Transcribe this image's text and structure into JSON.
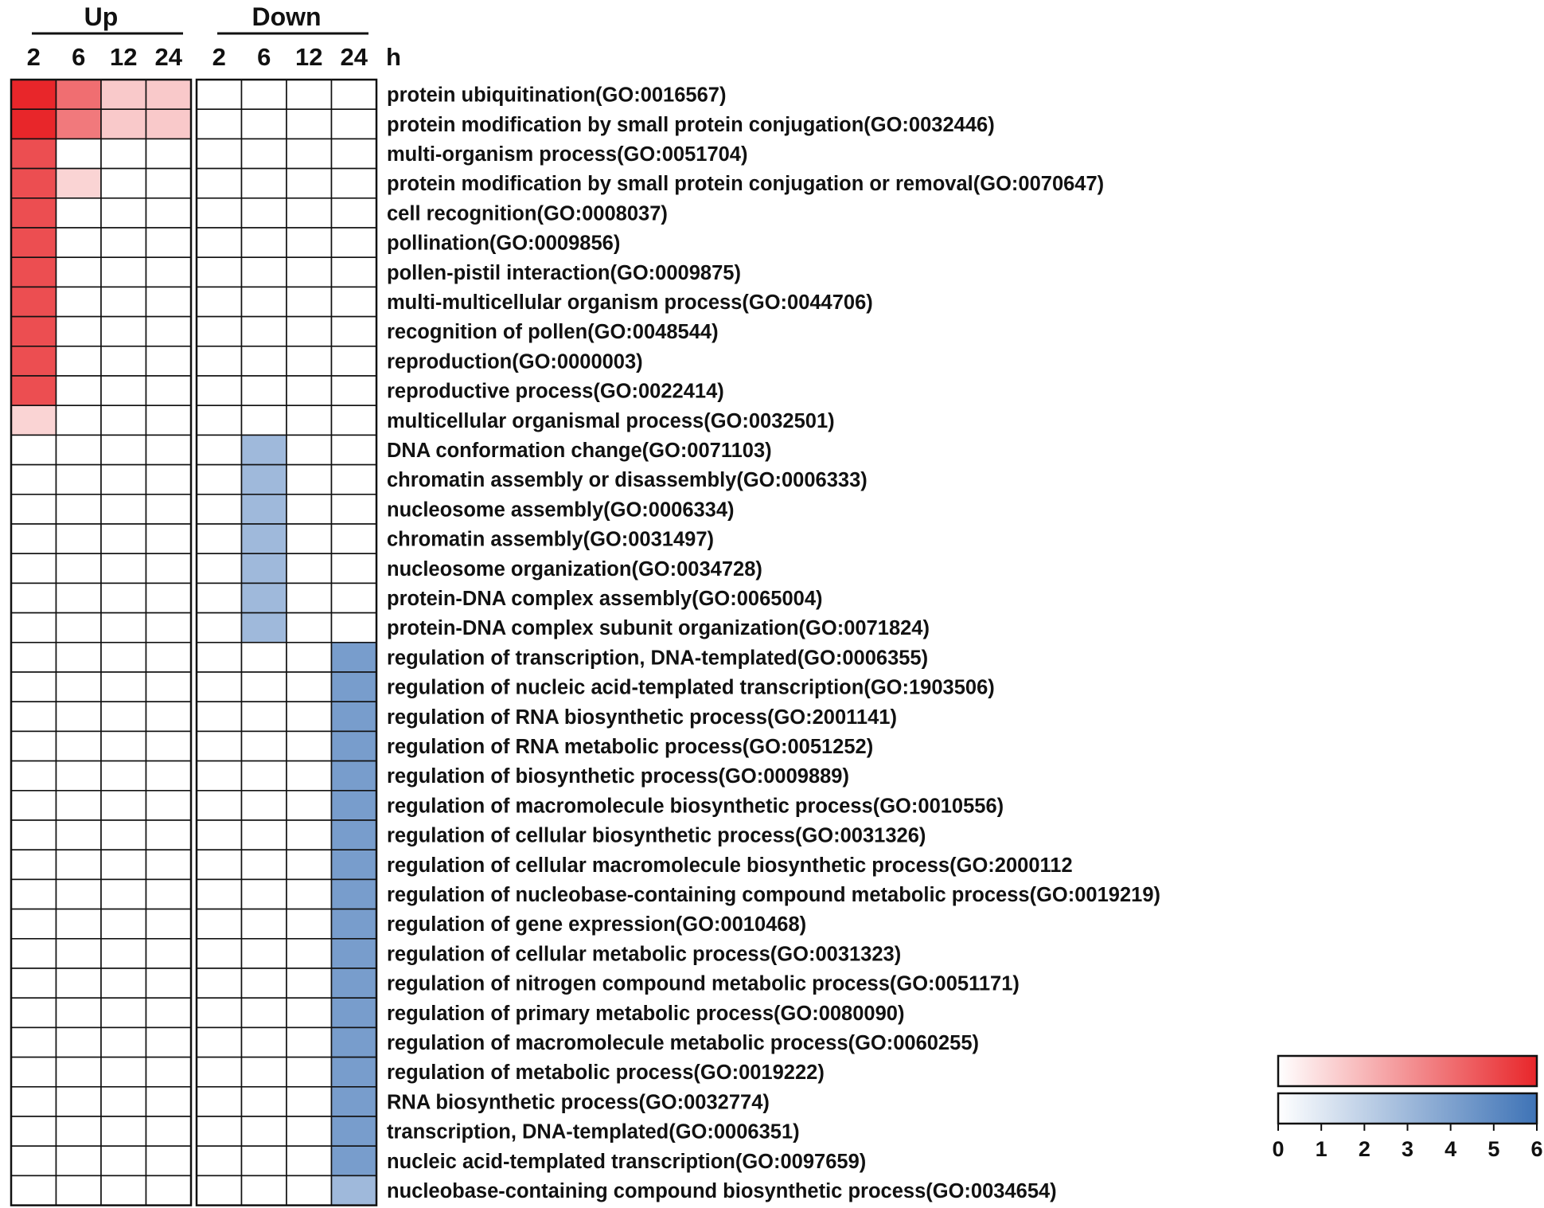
{
  "chart_data": {
    "type": "heatmap",
    "groups": [
      {
        "name": "Up",
        "columns": [
          "2",
          "6",
          "12",
          "24"
        ],
        "palette": "red"
      },
      {
        "name": "Down",
        "columns": [
          "2",
          "6",
          "12",
          "24"
        ],
        "palette": "blue"
      }
    ],
    "time_unit": "h",
    "rows": [
      "protein ubiquitination(GO:0016567)",
      "protein modification by small protein conjugation(GO:0032446)",
      "multi-organism process(GO:0051704)",
      "protein modification by small protein conjugation or removal(GO:0070647)",
      "cell recognition(GO:0008037)",
      "pollination(GO:0009856)",
      "pollen-pistil interaction(GO:0009875)",
      "multi-multicellular organism process(GO:0044706)",
      "recognition of pollen(GO:0048544)",
      "reproduction(GO:0000003)",
      "reproductive process(GO:0022414)",
      "multicellular organismal process(GO:0032501)",
      "DNA conformation change(GO:0071103)",
      "chromatin assembly or disassembly(GO:0006333)",
      "nucleosome assembly(GO:0006334)",
      "chromatin assembly(GO:0031497)",
      "nucleosome organization(GO:0034728)",
      "protein-DNA complex assembly(GO:0065004)",
      "protein-DNA complex subunit organization(GO:0071824)",
      "regulation of transcription, DNA-templated(GO:0006355)",
      "regulation of nucleic acid-templated transcription(GO:1903506)",
      "regulation of RNA biosynthetic process(GO:2001141)",
      "regulation of RNA metabolic process(GO:0051252)",
      "regulation of biosynthetic process(GO:0009889)",
      "regulation of macromolecule biosynthetic process(GO:0010556)",
      "regulation of cellular biosynthetic process(GO:0031326)",
      "regulation of cellular macromolecule biosynthetic process(GO:2000112",
      "regulation of nucleobase-containing compound metabolic process(GO:0019219)",
      "regulation of gene expression(GO:0010468)",
      "regulation of cellular metabolic process(GO:0031323)",
      "regulation of nitrogen compound metabolic process(GO:0051171)",
      "regulation of primary metabolic process(GO:0080090)",
      "regulation of macromolecule metabolic process(GO:0060255)",
      "regulation of metabolic process(GO:0019222)",
      "RNA biosynthetic process(GO:0032774)",
      "transcription, DNA-templated(GO:0006351)",
      "nucleic acid-templated transcription(GO:0097659)",
      "nucleobase-containing compound biosynthetic process(GO:0034654)"
    ],
    "up_values": [
      [
        6.0,
        4.0,
        1.5,
        1.5
      ],
      [
        6.0,
        3.7,
        1.5,
        1.5
      ],
      [
        4.9,
        0,
        0,
        0
      ],
      [
        4.9,
        1.2,
        0,
        0
      ],
      [
        4.9,
        0,
        0,
        0
      ],
      [
        4.9,
        0,
        0,
        0
      ],
      [
        4.9,
        0,
        0,
        0
      ],
      [
        4.9,
        0,
        0,
        0
      ],
      [
        4.9,
        0,
        0,
        0
      ],
      [
        4.9,
        0,
        0,
        0
      ],
      [
        4.9,
        0,
        0,
        0
      ],
      [
        1.2,
        0,
        0,
        0
      ],
      [
        0,
        0,
        0,
        0
      ],
      [
        0,
        0,
        0,
        0
      ],
      [
        0,
        0,
        0,
        0
      ],
      [
        0,
        0,
        0,
        0
      ],
      [
        0,
        0,
        0,
        0
      ],
      [
        0,
        0,
        0,
        0
      ],
      [
        0,
        0,
        0,
        0
      ],
      [
        0,
        0,
        0,
        0
      ],
      [
        0,
        0,
        0,
        0
      ],
      [
        0,
        0,
        0,
        0
      ],
      [
        0,
        0,
        0,
        0
      ],
      [
        0,
        0,
        0,
        0
      ],
      [
        0,
        0,
        0,
        0
      ],
      [
        0,
        0,
        0,
        0
      ],
      [
        0,
        0,
        0,
        0
      ],
      [
        0,
        0,
        0,
        0
      ],
      [
        0,
        0,
        0,
        0
      ],
      [
        0,
        0,
        0,
        0
      ],
      [
        0,
        0,
        0,
        0
      ],
      [
        0,
        0,
        0,
        0
      ],
      [
        0,
        0,
        0,
        0
      ],
      [
        0,
        0,
        0,
        0
      ],
      [
        0,
        0,
        0,
        0
      ],
      [
        0,
        0,
        0,
        0
      ],
      [
        0,
        0,
        0,
        0
      ],
      [
        0,
        0,
        0,
        0
      ]
    ],
    "down_values": [
      [
        0,
        0,
        0,
        0
      ],
      [
        0,
        0,
        0,
        0
      ],
      [
        0,
        0,
        0,
        0
      ],
      [
        0,
        0,
        0,
        0
      ],
      [
        0,
        0,
        0,
        0
      ],
      [
        0,
        0,
        0,
        0
      ],
      [
        0,
        0,
        0,
        0
      ],
      [
        0,
        0,
        0,
        0
      ],
      [
        0,
        0,
        0,
        0
      ],
      [
        0,
        0,
        0,
        0
      ],
      [
        0,
        0,
        0,
        0
      ],
      [
        0,
        0,
        0,
        0
      ],
      [
        0,
        3.0,
        0,
        0
      ],
      [
        0,
        3.0,
        0,
        0
      ],
      [
        0,
        3.0,
        0,
        0
      ],
      [
        0,
        3.0,
        0,
        0
      ],
      [
        0,
        3.0,
        0,
        0
      ],
      [
        0,
        3.0,
        0,
        0
      ],
      [
        0,
        3.0,
        0,
        0
      ],
      [
        0,
        0,
        0,
        4.2
      ],
      [
        0,
        0,
        0,
        4.2
      ],
      [
        0,
        0,
        0,
        4.2
      ],
      [
        0,
        0,
        0,
        4.2
      ],
      [
        0,
        0,
        0,
        4.2
      ],
      [
        0,
        0,
        0,
        4.2
      ],
      [
        0,
        0,
        0,
        4.2
      ],
      [
        0,
        0,
        0,
        4.2
      ],
      [
        0,
        0,
        0,
        4.2
      ],
      [
        0,
        0,
        0,
        4.2
      ],
      [
        0,
        0,
        0,
        4.2
      ],
      [
        0,
        0,
        0,
        4.2
      ],
      [
        0,
        0,
        0,
        4.2
      ],
      [
        0,
        0,
        0,
        4.2
      ],
      [
        0,
        0,
        0,
        4.2
      ],
      [
        0,
        0,
        0,
        4.2
      ],
      [
        0,
        0,
        0,
        4.2
      ],
      [
        0,
        0,
        0,
        4.2
      ],
      [
        0,
        0,
        0,
        3.0
      ]
    ],
    "scale": {
      "min": 0,
      "max": 6,
      "ticks": [
        "0",
        "1",
        "2",
        "3",
        "4",
        "5",
        "6"
      ]
    },
    "colors": {
      "red_low": "#ffffff",
      "red_high": "#e8262a",
      "blue_low": "#ffffff",
      "blue_high": "#3e73b6",
      "cell_border": "#111111"
    },
    "legend_position": "bottom-right",
    "grid": true
  }
}
